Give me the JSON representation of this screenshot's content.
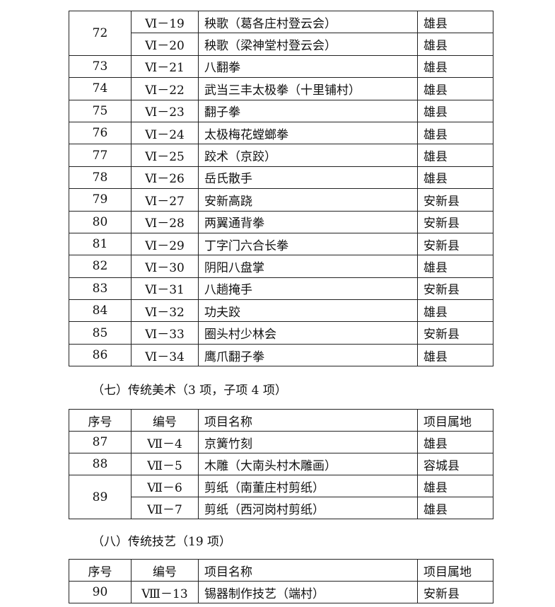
{
  "sections": [
    {
      "groups": [
        {
          "no": "72",
          "items": [
            {
              "code": "Ⅵ－19",
              "name": "秧歌（葛各庄村登云会）",
              "place": "雄县"
            },
            {
              "code": "Ⅵ－20",
              "name": "秧歌（梁神堂村登云会）",
              "place": "雄县"
            }
          ]
        },
        {
          "no": "73",
          "items": [
            {
              "code": "Ⅵ－21",
              "name": "八翻拳",
              "place": "雄县"
            }
          ]
        },
        {
          "no": "74",
          "items": [
            {
              "code": "Ⅵ－22",
              "name": "武当三丰太极拳（十里铺村）",
              "place": "雄县"
            }
          ]
        },
        {
          "no": "75",
          "items": [
            {
              "code": "Ⅵ－23",
              "name": "翻子拳",
              "place": "雄县"
            }
          ]
        },
        {
          "no": "76",
          "items": [
            {
              "code": "Ⅵ－24",
              "name": "太极梅花螳螂拳",
              "place": "雄县"
            }
          ]
        },
        {
          "no": "77",
          "items": [
            {
              "code": "Ⅵ－25",
              "name": "跤术（京跤）",
              "place": "雄县"
            }
          ]
        },
        {
          "no": "78",
          "items": [
            {
              "code": "Ⅵ－26",
              "name": "岳氏散手",
              "place": "雄县"
            }
          ]
        },
        {
          "no": "79",
          "items": [
            {
              "code": "Ⅵ－27",
              "name": "安新高跷",
              "place": "安新县"
            }
          ]
        },
        {
          "no": "80",
          "items": [
            {
              "code": "Ⅵ－28",
              "name": "两翼通背拳",
              "place": "安新县"
            }
          ]
        },
        {
          "no": "81",
          "items": [
            {
              "code": "Ⅵ－29",
              "name": "丁字门六合长拳",
              "place": "安新县"
            }
          ]
        },
        {
          "no": "82",
          "items": [
            {
              "code": "Ⅵ－30",
              "name": "阴阳八盘掌",
              "place": "雄县"
            }
          ]
        },
        {
          "no": "83",
          "items": [
            {
              "code": "Ⅵ－31",
              "name": "八趟掩手",
              "place": "安新县"
            }
          ]
        },
        {
          "no": "84",
          "items": [
            {
              "code": "Ⅵ－32",
              "name": "功夫跤",
              "place": "雄县"
            }
          ]
        },
        {
          "no": "85",
          "items": [
            {
              "code": "Ⅵ－33",
              "name": "圈头村少林会",
              "place": "安新县"
            }
          ]
        },
        {
          "no": "86",
          "items": [
            {
              "code": "Ⅵ－34",
              "name": "鹰爪翻子拳",
              "place": "雄县"
            }
          ]
        }
      ]
    },
    {
      "heading": "（七）传统美术（3 项，子项 4 项）",
      "header": [
        "序号",
        "编号",
        "项目名称",
        "项目属地"
      ],
      "groups": [
        {
          "no": "87",
          "items": [
            {
              "code": "Ⅶ－4",
              "name": "京簧竹刻",
              "place": "雄县"
            }
          ]
        },
        {
          "no": "88",
          "items": [
            {
              "code": "Ⅶ－5",
              "name": "木雕（大南头村木雕画）",
              "place": "容城县"
            }
          ]
        },
        {
          "no": "89",
          "items": [
            {
              "code": "Ⅶ－6",
              "name": "剪纸（南董庄村剪纸）",
              "place": "雄县"
            },
            {
              "code": "Ⅶ－7",
              "name": "剪纸（西河岗村剪纸）",
              "place": "雄县"
            }
          ]
        }
      ]
    },
    {
      "heading": "（八）传统技艺（19 项）",
      "header": [
        "序号",
        "编号",
        "项目名称",
        "项目属地"
      ],
      "groups": [
        {
          "no": "90",
          "items": [
            {
              "code": "Ⅷ－13",
              "name": "锡器制作技艺（端村）",
              "place": "安新县"
            }
          ]
        }
      ]
    }
  ]
}
